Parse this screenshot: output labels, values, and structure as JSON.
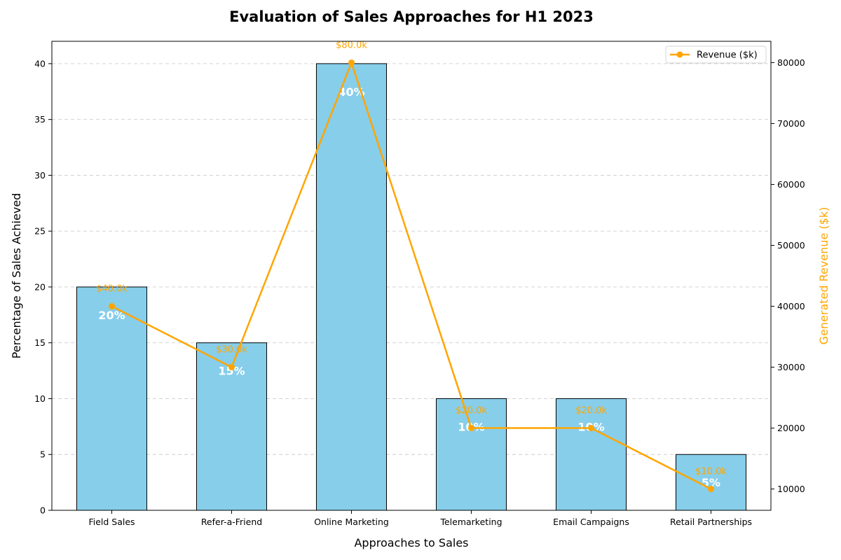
{
  "chart_data": {
    "type": "bar",
    "title": "Evaluation of Sales Approaches for H1 2023",
    "xlabel": "Approaches to Sales",
    "ylabel": "Percentage of Sales Achieved",
    "y2label": "Generated Revenue ($k)",
    "categories": [
      "Field Sales",
      "Refer-a-Friend",
      "Online Marketing",
      "Telemarketing",
      "Email Campaigns",
      "Retail Partnerships"
    ],
    "series": [
      {
        "type": "bar",
        "axis": "left",
        "values": [
          20,
          15,
          40,
          10,
          10,
          5
        ],
        "data_labels": [
          "20%",
          "15%",
          "40%",
          "10%",
          "10%",
          "5%"
        ],
        "color": "#87CEEB"
      },
      {
        "type": "line",
        "axis": "right",
        "name": "Revenue ($k)",
        "values": [
          40000,
          30000,
          80000,
          20000,
          20000,
          10000
        ],
        "data_labels": [
          "$40.0k",
          "$30.0k",
          "$80.0k",
          "$20.0k",
          "$20.0k",
          "$10.0k"
        ],
        "color": "#FFA500"
      }
    ],
    "ylim": [
      0,
      42
    ],
    "y2lim": [
      6500,
      83500
    ],
    "yticks": [
      0,
      5,
      10,
      15,
      20,
      25,
      30,
      35,
      40
    ],
    "y2ticks": [
      10000,
      20000,
      30000,
      40000,
      50000,
      60000,
      70000,
      80000
    ],
    "grid": true,
    "legend": "top-right"
  }
}
